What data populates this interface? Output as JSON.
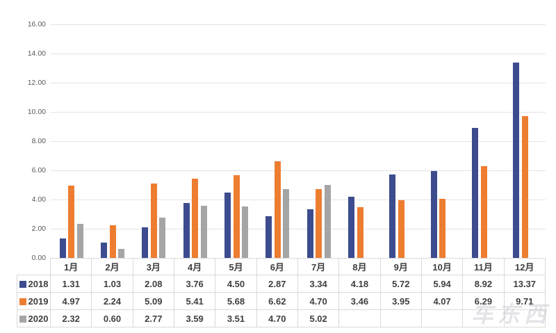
{
  "watermark_text": "车东西",
  "colors": {
    "series_2018": "#3c4c8e",
    "series_2019": "#ed7d31",
    "series_2020": "#a5a5a5",
    "gridline": "#e3e3e3",
    "table_border": "#d9d9d9",
    "table_text": "#3f3f3f",
    "axis_text": "#595959"
  },
  "chart_data": {
    "type": "bar",
    "title": "",
    "xlabel": "",
    "ylabel": "",
    "categories": [
      "1月",
      "2月",
      "3月",
      "4月",
      "5月",
      "6月",
      "7月",
      "8月",
      "9月",
      "10月",
      "11月",
      "12月"
    ],
    "series": [
      {
        "name": "2018",
        "color_key": "series_2018",
        "values": [
          1.31,
          1.03,
          2.08,
          3.76,
          4.5,
          2.87,
          3.34,
          4.18,
          5.72,
          5.94,
          8.92,
          13.37
        ]
      },
      {
        "name": "2019",
        "color_key": "series_2019",
        "values": [
          4.97,
          2.24,
          5.09,
          5.41,
          5.68,
          6.62,
          4.7,
          3.46,
          3.95,
          4.07,
          6.29,
          9.71
        ]
      },
      {
        "name": "2020",
        "color_key": "series_2020",
        "values": [
          2.32,
          0.6,
          2.77,
          3.59,
          3.51,
          4.7,
          5.02,
          null,
          null,
          null,
          null,
          null
        ]
      }
    ],
    "ylim": [
      0,
      16
    ],
    "ytick_step": 2,
    "ytick_labels": [
      "0.00",
      "2.00",
      "4.00",
      "6.00",
      "8.00",
      "10.00",
      "12.00",
      "14.00",
      "16.00"
    ],
    "grid": true,
    "legend_position": "table-left",
    "value_decimals": 2
  }
}
